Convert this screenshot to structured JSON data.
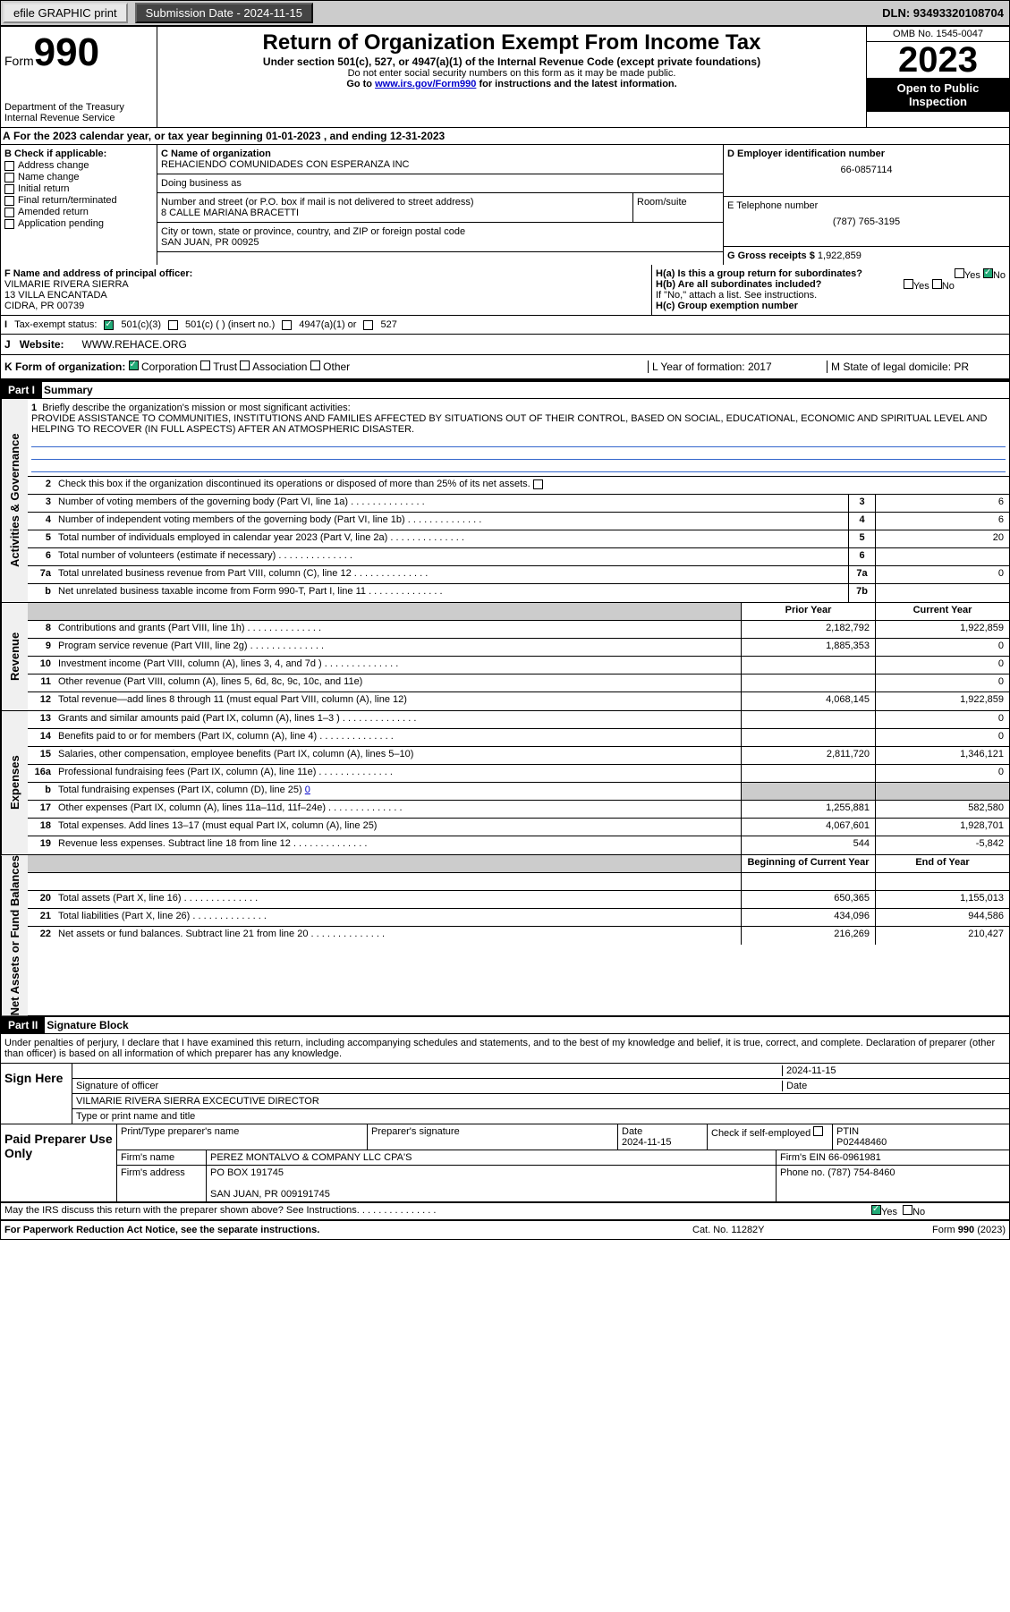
{
  "toolbar": {
    "efile": "efile GRAPHIC print",
    "subdate_label": "Submission Date - 2024-11-15",
    "dln": "DLN: 93493320108704"
  },
  "header": {
    "form_label": "Form",
    "form_num": "990",
    "dept": "Department of the Treasury",
    "irs": "Internal Revenue Service",
    "title": "Return of Organization Exempt From Income Tax",
    "subtitle": "Under section 501(c), 527, or 4947(a)(1) of the Internal Revenue Code (except private foundations)",
    "ssn": "Do not enter social security numbers on this form as it may be made public.",
    "goto": "Go to ",
    "goto_link": "www.irs.gov/Form990",
    "goto_rest": " for instructions and the latest information.",
    "omb": "OMB No. 1545-0047",
    "year": "2023",
    "public": "Open to Public Inspection"
  },
  "rowA": {
    "text": "For the 2023 calendar year, or tax year beginning 01-01-2023   , and ending 12-31-2023"
  },
  "boxB": {
    "label": "B Check if applicable:",
    "items": [
      "Address change",
      "Name change",
      "Initial return",
      "Final return/terminated",
      "Amended return",
      "Application pending"
    ]
  },
  "boxC": {
    "name_label": "C Name of organization",
    "name": "REHACIENDO COMUNIDADES CON ESPERANZA INC",
    "dba_label": "Doing business as",
    "street_label": "Number and street (or P.O. box if mail is not delivered to street address)",
    "street": "8 CALLE MARIANA BRACETTI",
    "room_label": "Room/suite",
    "city_label": "City or town, state or province, country, and ZIP or foreign postal code",
    "city": "SAN JUAN, PR  00925"
  },
  "boxD": {
    "label": "D Employer identification number",
    "val": "66-0857114"
  },
  "boxE": {
    "label": "E Telephone number",
    "val": "(787) 765-3195"
  },
  "boxG": {
    "label": "G Gross receipts $",
    "val": "1,922,859"
  },
  "boxF": {
    "label": "F Name and address of principal officer:",
    "name": "VILMARIE RIVERA SIERRA",
    "addr": "13 VILLA ENCANTADA",
    "city": "CIDRA, PR  00739"
  },
  "boxH": {
    "ha": "H(a)  Is this a group return for subordinates?",
    "ha_yes": "Yes",
    "ha_no": "No",
    "hb": "H(b)  Are all subordinates included?",
    "hb_note": "If \"No,\" attach a list. See instructions.",
    "hc": "H(c)  Group exemption number"
  },
  "rowI": {
    "label": "Tax-exempt status:",
    "c3": "501(c)(3)",
    "c": "501(c) (  ) (insert no.)",
    "a1": "4947(a)(1) or",
    "s527": "527"
  },
  "rowJ": {
    "label": "Website:",
    "val": "WWW.REHACE.ORG"
  },
  "rowK": {
    "label": "K Form of organization:",
    "corp": "Corporation",
    "trust": "Trust",
    "assoc": "Association",
    "other": "Other",
    "L": "L Year of formation: 2017",
    "M": "M State of legal domicile: PR"
  },
  "part1": {
    "hdr": "Part I",
    "title": "Summary"
  },
  "p1_lines": {
    "l1_label": "Briefly describe the organization's mission or most significant activities:",
    "l1_text": "PROVIDE ASSISTANCE TO COMMUNITIES, INSTITUTIONS AND FAMILIES AFFECTED BY SITUATIONS OUT OF THEIR CONTROL, BASED ON SOCIAL, EDUCATIONAL, ECONOMIC AND SPIRITUAL LEVEL AND HELPING TO RECOVER (IN FULL ASPECTS) AFTER AN ATMOSPHERIC DISASTER.",
    "l2": "Check this box       if the organization discontinued its operations or disposed of more than 25% of its net assets.",
    "l3": "Number of voting members of the governing body (Part VI, line 1a)",
    "l4": "Number of independent voting members of the governing body (Part VI, line 1b)",
    "l5": "Total number of individuals employed in calendar year 2023 (Part V, line 2a)",
    "l6": "Total number of volunteers (estimate if necessary)",
    "l7a": "Total unrelated business revenue from Part VIII, column (C), line 12",
    "l7b": "Net unrelated business taxable income from Form 990-T, Part I, line 11",
    "v3": "6",
    "v4": "6",
    "v5": "20",
    "v6": "",
    "v7a": "0",
    "v7b": ""
  },
  "revenue": {
    "prior_hdr": "Prior Year",
    "curr_hdr": "Current Year",
    "l8": "Contributions and grants (Part VIII, line 1h)",
    "p8": "2,182,792",
    "c8": "1,922,859",
    "l9": "Program service revenue (Part VIII, line 2g)",
    "p9": "1,885,353",
    "c9": "0",
    "l10": "Investment income (Part VIII, column (A), lines 3, 4, and 7d )",
    "p10": "",
    "c10": "0",
    "l11": "Other revenue (Part VIII, column (A), lines 5, 6d, 8c, 9c, 10c, and 11e)",
    "p11": "",
    "c11": "0",
    "l12": "Total revenue—add lines 8 through 11 (must equal Part VIII, column (A), line 12)",
    "p12": "4,068,145",
    "c12": "1,922,859"
  },
  "expenses": {
    "l13": "Grants and similar amounts paid (Part IX, column (A), lines 1–3 )",
    "p13": "",
    "c13": "0",
    "l14": "Benefits paid to or for members (Part IX, column (A), line 4)",
    "p14": "",
    "c14": "0",
    "l15": "Salaries, other compensation, employee benefits (Part IX, column (A), lines 5–10)",
    "p15": "2,811,720",
    "c15": "1,346,121",
    "l16a": "Professional fundraising fees (Part IX, column (A), line 11e)",
    "p16a": "",
    "c16a": "0",
    "l16b": "Total fundraising expenses (Part IX, column (D), line 25) ",
    "l16b_val": "0",
    "l17": "Other expenses (Part IX, column (A), lines 11a–11d, 11f–24e)",
    "p17": "1,255,881",
    "c17": "582,580",
    "l18": "Total expenses. Add lines 13–17 (must equal Part IX, column (A), line 25)",
    "p18": "4,067,601",
    "c18": "1,928,701",
    "l19": "Revenue less expenses. Subtract line 18 from line 12",
    "p19": "544",
    "c19": "-5,842"
  },
  "netassets": {
    "begin_hdr": "Beginning of Current Year",
    "end_hdr": "End of Year",
    "l20": "Total assets (Part X, line 16)",
    "p20": "650,365",
    "c20": "1,155,013",
    "l21": "Total liabilities (Part X, line 26)",
    "p21": "434,096",
    "c21": "944,586",
    "l22": "Net assets or fund balances. Subtract line 21 from line 20",
    "p22": "216,269",
    "c22": "210,427"
  },
  "part2": {
    "hdr": "Part II",
    "title": "Signature Block"
  },
  "sig": {
    "perjury": "Under penalties of perjury, I declare that I have examined this return, including accompanying schedules and statements, and to the best of my knowledge and belief, it is true, correct, and complete. Declaration of preparer (other than officer) is based on all information of which preparer has any knowledge.",
    "sign_here": "Sign Here",
    "sig_officer": "Signature of officer",
    "date_label": "Date",
    "date_val": "2024-11-15",
    "name_title": "VILMARIE RIVERA SIERRA  EXCECUTIVE DIRECTOR",
    "type_print": "Type or print name and title"
  },
  "prep": {
    "paid": "Paid Preparer Use Only",
    "print_name": "Print/Type preparer's name",
    "prep_sig": "Preparer's signature",
    "date_label": "Date",
    "date_val": "2024-11-15",
    "check_label": "Check         if self-employed",
    "ptin_label": "PTIN",
    "ptin": "P02448460",
    "firm_name_label": "Firm's name",
    "firm_name": "PEREZ MONTALVO & COMPANY LLC CPA'S",
    "firm_ein_label": "Firm's EIN",
    "firm_ein": "66-0961981",
    "firm_addr_label": "Firm's address",
    "firm_addr": "PO BOX 191745",
    "firm_city": "SAN JUAN, PR  009191745",
    "phone_label": "Phone no.",
    "phone": "(787) 754-8460"
  },
  "discuss": {
    "text": "May the IRS discuss this return with the preparer shown above? See Instructions.",
    "yes": "Yes",
    "no": "No"
  },
  "footer": {
    "pra": "For Paperwork Reduction Act Notice, see the separate instructions.",
    "cat": "Cat. No. 11282Y",
    "form": "Form 990 (2023)"
  },
  "side": {
    "gov": "Activities & Governance",
    "rev": "Revenue",
    "exp": "Expenses",
    "net": "Net Assets or Fund Balances"
  }
}
